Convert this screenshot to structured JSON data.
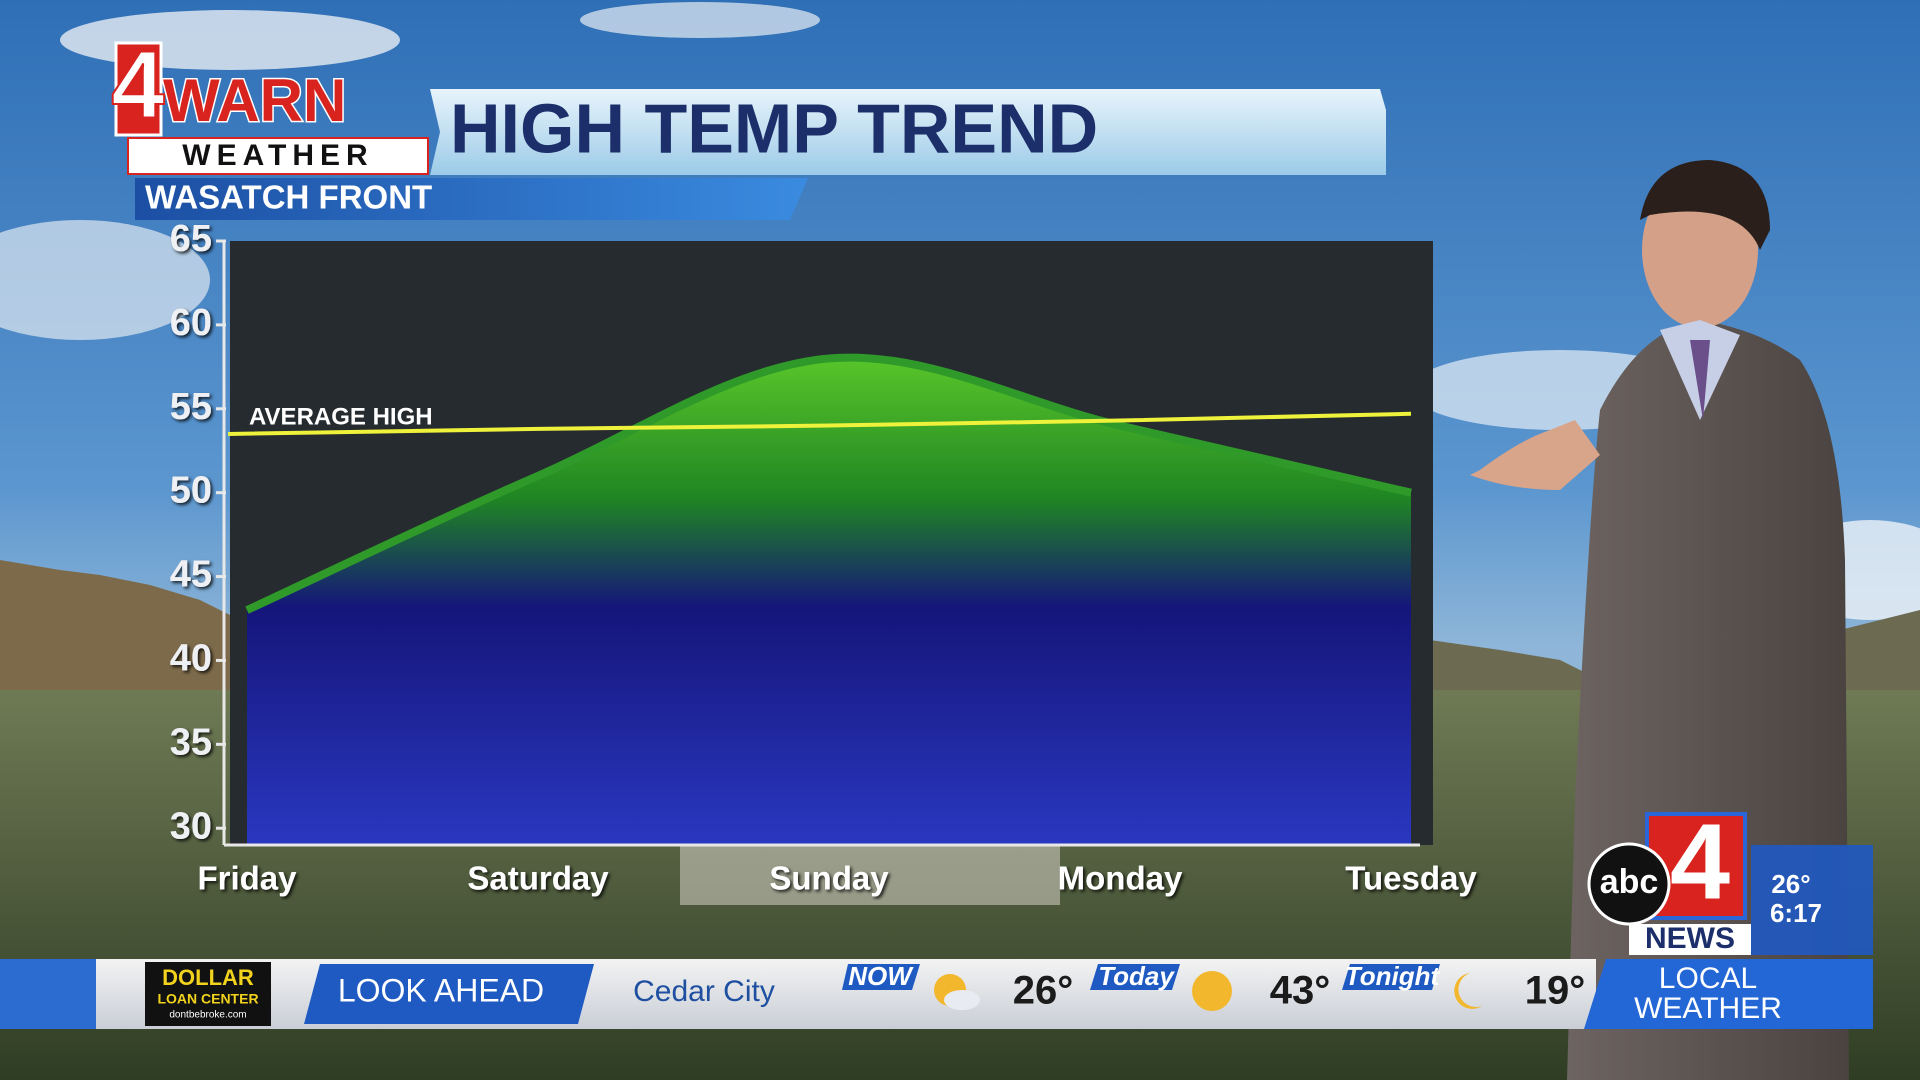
{
  "logo": {
    "four": "4",
    "warn": "WARN",
    "weather": "WEATHER"
  },
  "chart_data": {
    "type": "area",
    "title": "HIGH TEMP TREND",
    "subtitle": "WASATCH FRONT",
    "categories": [
      "Friday",
      "Saturday",
      "Sunday",
      "Monday",
      "Tuesday"
    ],
    "values": [
      43,
      51,
      58,
      54,
      50
    ],
    "reference": {
      "label": "AVERAGE HIGH",
      "values": [
        53.5,
        53.8,
        54,
        54.3,
        54.7
      ],
      "color": "#eef23a"
    },
    "ylim": [
      29,
      65
    ],
    "yticks": [
      30,
      35,
      40,
      45,
      50,
      55,
      60,
      65
    ]
  },
  "ticker": {
    "sponsor": {
      "name": "DOLLAR",
      "sub": "LOAN CENTER",
      "url": "dontbebroke.com"
    },
    "segment": "LOOK AHEAD",
    "city": "Cedar City",
    "now": {
      "label": "NOW",
      "temp": "26°"
    },
    "today": {
      "label": "Today",
      "temp": "43°"
    },
    "tonight": {
      "label": "Tonight",
      "temp": "19°"
    },
    "local": [
      "LOCAL",
      "WEATHER"
    ]
  },
  "bug": {
    "abc": "abc",
    "four": "4",
    "news": "NEWS",
    "temp": "26°",
    "time": "6:17"
  }
}
